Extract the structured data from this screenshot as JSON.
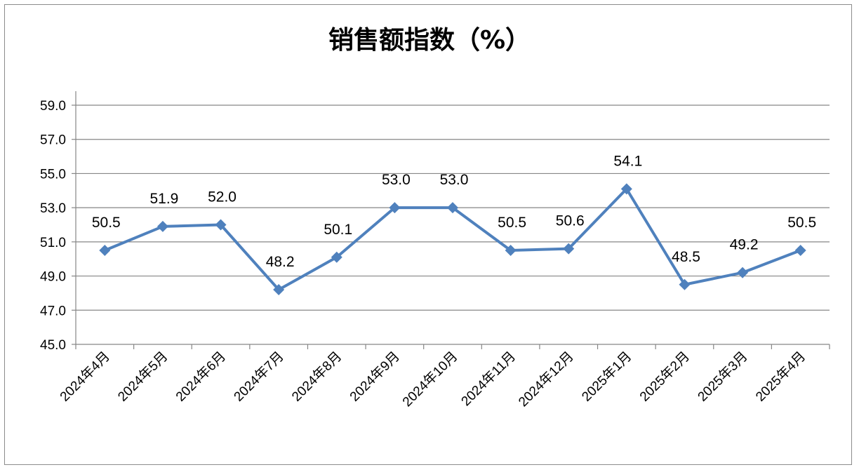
{
  "chart_data": {
    "type": "line",
    "title": "销售额指数（%）",
    "categories": [
      "2024年4月",
      "2024年5月",
      "2024年6月",
      "2024年7月",
      "2024年8月",
      "2024年9月",
      "2024年10月",
      "2024年11月",
      "2024年12月",
      "2025年1月",
      "2025年2月",
      "2025年3月",
      "2025年4月"
    ],
    "series": [
      {
        "values": [
          50.5,
          51.9,
          52.0,
          48.2,
          50.1,
          53.0,
          53.0,
          50.5,
          50.6,
          54.1,
          48.5,
          49.2,
          50.5
        ],
        "color": "#4f81bd",
        "marker": "diamond"
      }
    ],
    "data_labels": [
      "50.5",
      "51.9",
      "52.0",
      "48.2",
      "50.1",
      "53.0",
      "53.0",
      "50.5",
      "50.6",
      "54.1",
      "48.5",
      "49.2",
      "50.5"
    ],
    "y_ticks": [
      "45.0",
      "47.0",
      "49.0",
      "51.0",
      "53.0",
      "55.0",
      "57.0",
      "59.0"
    ],
    "ylim": [
      45,
      59
    ],
    "grid": true,
    "legend": "none"
  }
}
